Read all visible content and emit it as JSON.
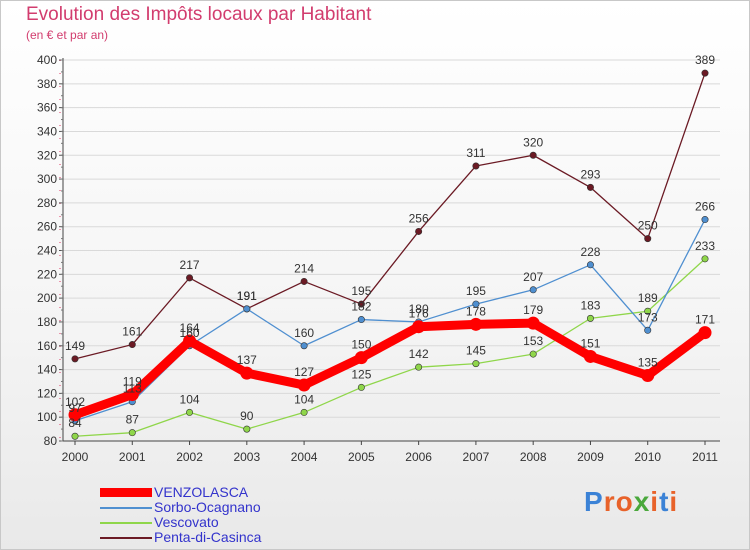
{
  "chart_data": {
    "type": "line",
    "title": "Evolution des Impôts locaux par Habitant",
    "subtitle": "(en € et par an)",
    "xlabel": "",
    "ylabel": "",
    "ylim": [
      80,
      400
    ],
    "yticks": [
      80,
      100,
      120,
      140,
      160,
      180,
      200,
      220,
      240,
      260,
      280,
      300,
      320,
      340,
      360,
      380,
      400
    ],
    "categories": [
      "2000",
      "2001",
      "2002",
      "2003",
      "2004",
      "2005",
      "2006",
      "2007",
      "2008",
      "2009",
      "2010",
      "2011"
    ],
    "series": [
      {
        "name": "VENZOLASCA",
        "color": "#ff0000",
        "values": [
          102,
          119,
          164,
          137,
          127,
          150,
          176,
          178,
          179,
          151,
          135,
          171
        ]
      },
      {
        "name": "Sorbo-Ocagnano",
        "color": "#4f8fd0",
        "values": [
          97,
          113,
          160,
          191,
          160,
          182,
          180,
          195,
          207,
          228,
          173,
          266
        ]
      },
      {
        "name": "Vescovato",
        "color": "#8fd64a",
        "values": [
          84,
          87,
          104,
          90,
          104,
          125,
          142,
          145,
          153,
          183,
          189,
          233
        ]
      },
      {
        "name": "Penta-di-Casinca",
        "color": "#6b1a24",
        "values": [
          149,
          161,
          217,
          191,
          214,
          195,
          256,
          311,
          320,
          293,
          250,
          389
        ]
      }
    ],
    "data_labels": [
      [
        "102",
        "119",
        "164",
        "137",
        "127",
        "150",
        "176",
        "178",
        "179",
        "151",
        "135",
        "171"
      ],
      [
        "97",
        "113",
        "160",
        "191",
        "160",
        "182",
        "180",
        "195",
        "207",
        "228",
        "173",
        "266"
      ],
      [
        "84",
        "87",
        "104",
        "90",
        "104",
        "125",
        "142",
        "145",
        "153",
        "183",
        "189",
        "233"
      ],
      [
        "149",
        "161",
        "217",
        "191",
        "214",
        "195",
        "256",
        "311",
        "320",
        "293",
        "250",
        "389"
      ]
    ],
    "legend_position": "bottom-left"
  },
  "logo": {
    "text": "Proxiti",
    "letters": [
      "P",
      "r",
      "o",
      "x",
      "i",
      "t",
      "i"
    ],
    "colors": [
      "#3b82d6",
      "#e8622a",
      "#e8622a",
      "#4aa83c",
      "#e8622a",
      "#3b82d6",
      "#e8622a"
    ]
  }
}
